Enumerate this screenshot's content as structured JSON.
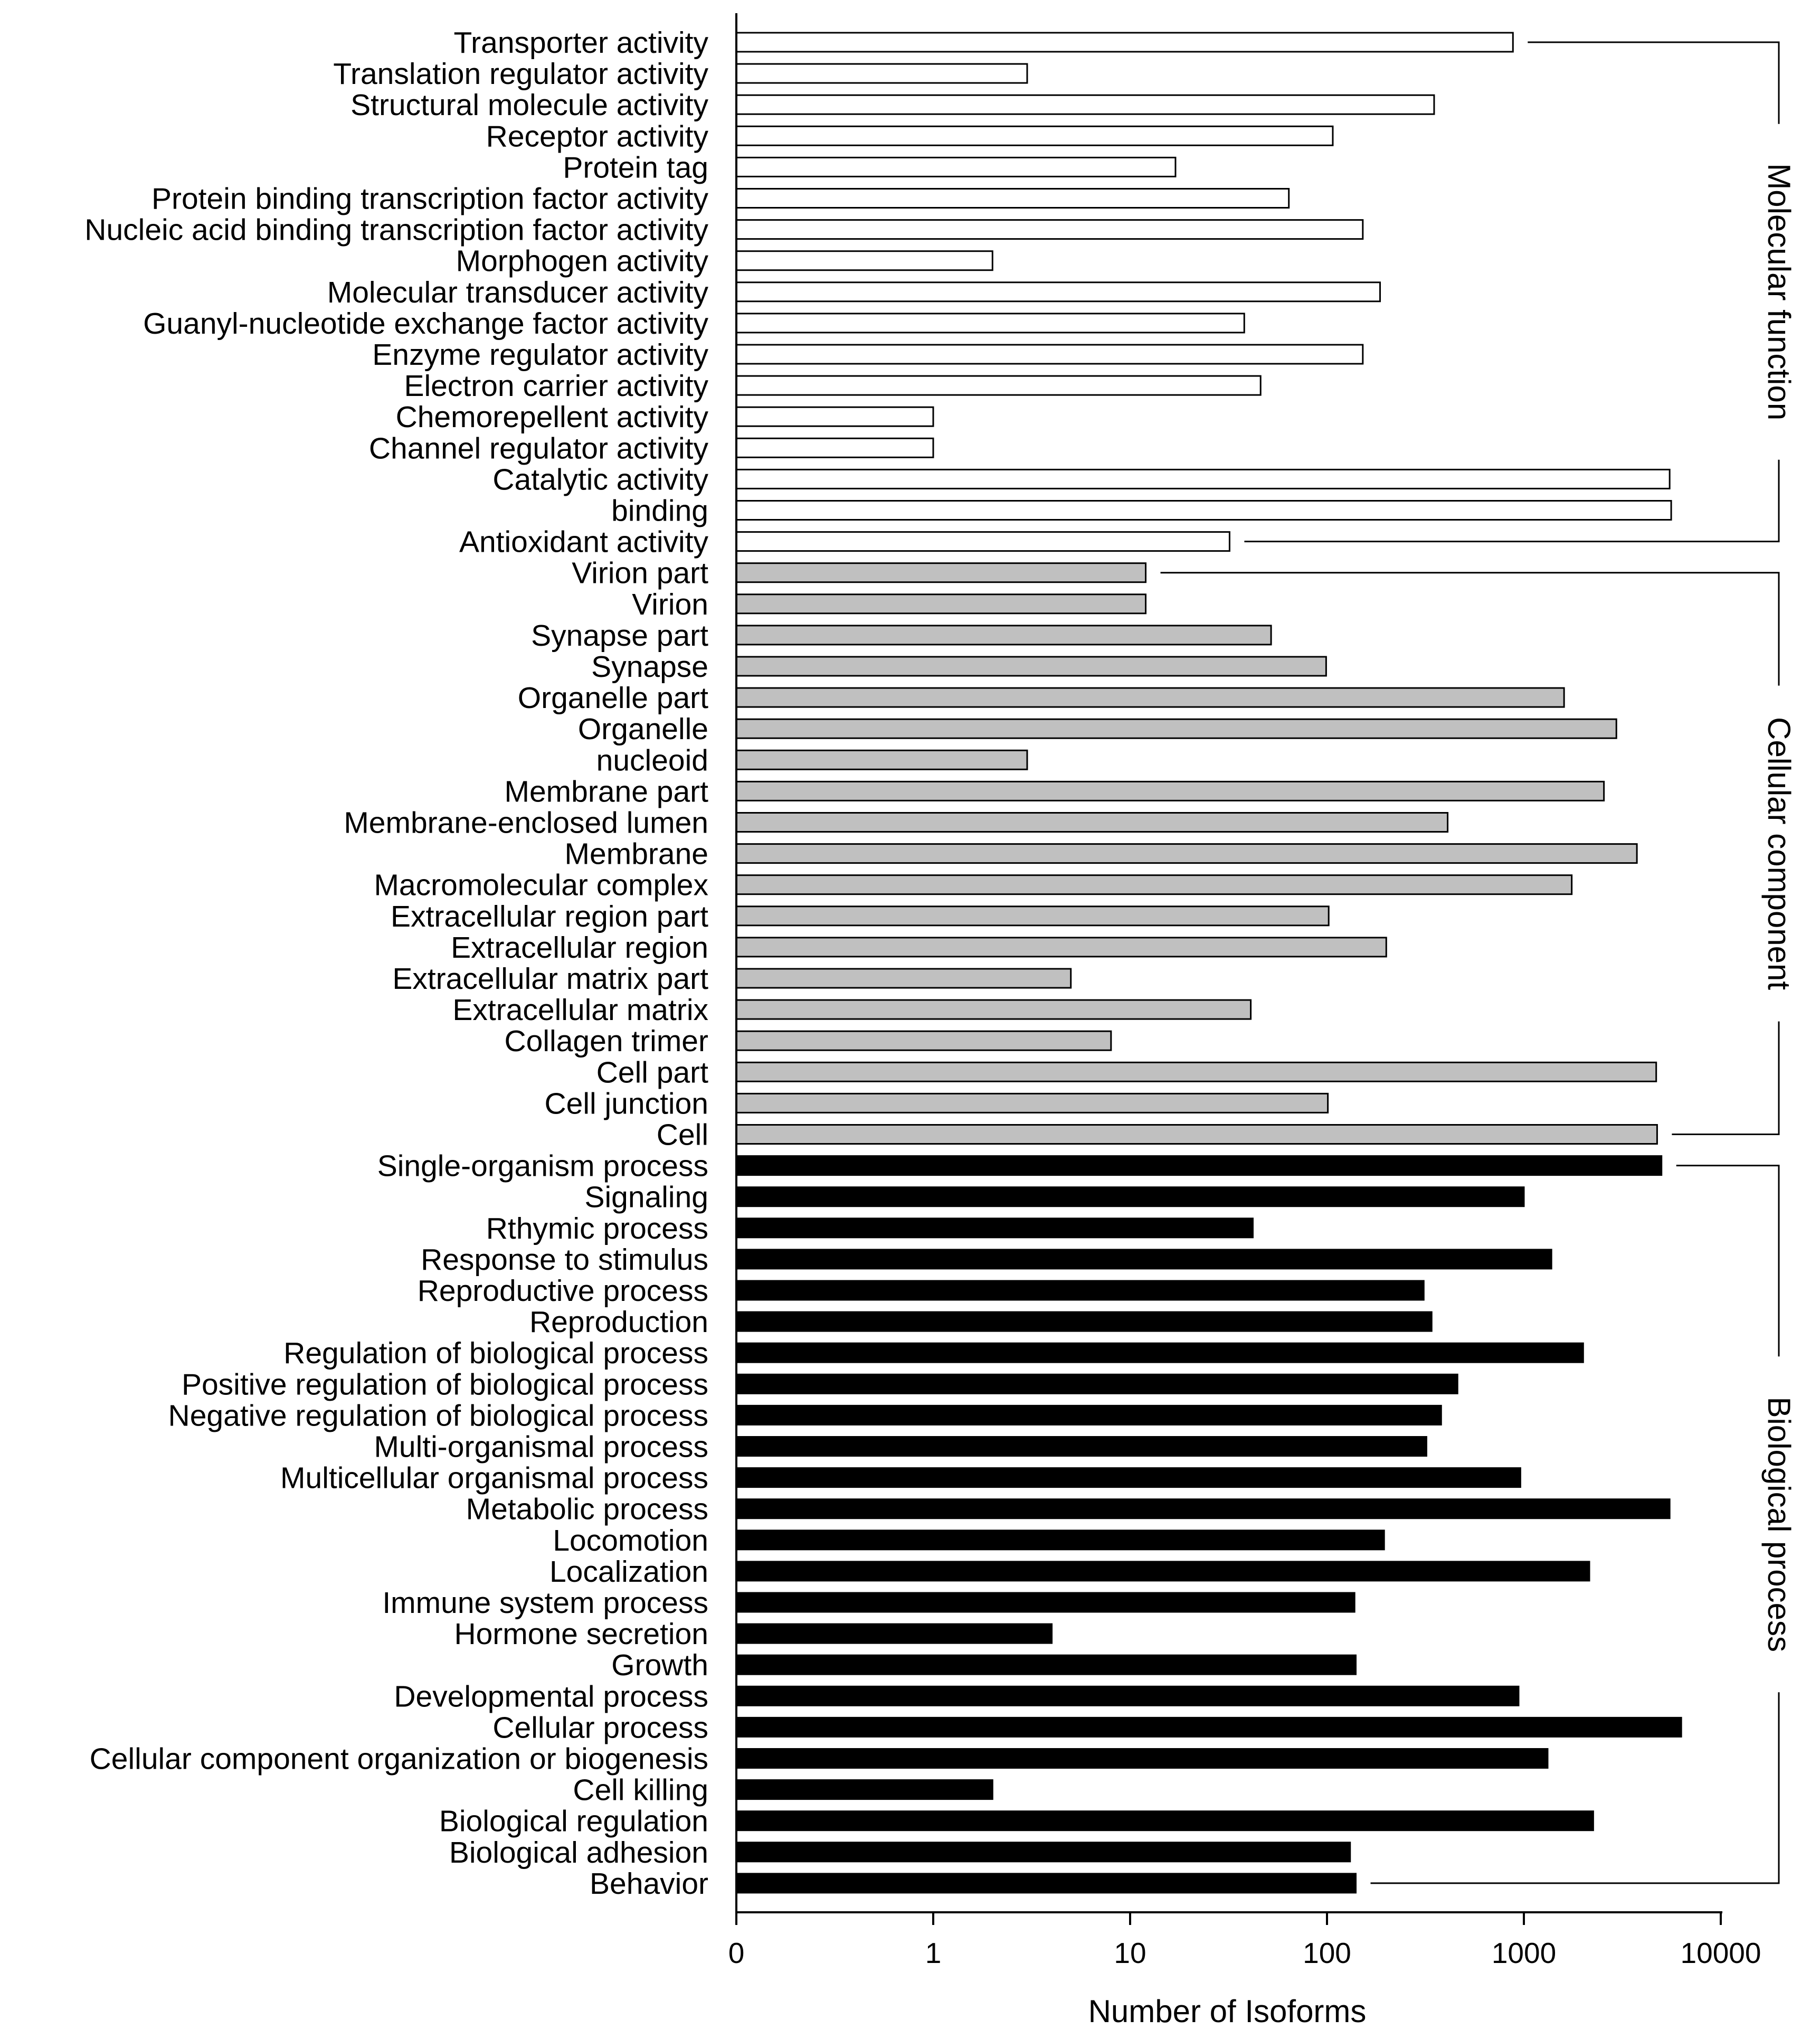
{
  "chart_data": {
    "type": "bar",
    "orientation": "horizontal",
    "xscale": "log (0 at origin)",
    "xlabel": "Number of Isoforms",
    "xticks": [
      "0",
      "1",
      "10",
      "100",
      "1000",
      "10000"
    ],
    "groups": [
      {
        "name": "Molecular function",
        "color": "#ffffff",
        "categories": [
          "Transporter activity",
          "Translation regulator activity",
          "Structural molecule activity",
          "Receptor activity",
          "Protein tag",
          "Protein binding transcription factor activity",
          "Nucleic acid binding transcription factor activity",
          "Morphogen activity",
          "Molecular transducer activity",
          "Guanyl-nucleotide exchange factor activity",
          "Enzyme regulator activity",
          "Electron carrier activity",
          "Chemorepellent activity",
          "Channel regulator activity",
          "Catalytic activity",
          "binding",
          "Antioxidant activity"
        ],
        "values": [
          880,
          3,
          350,
          107,
          17,
          64,
          152,
          2,
          186,
          38,
          152,
          46,
          1,
          1,
          5500,
          5600,
          32
        ]
      },
      {
        "name": "Cellular component",
        "color": "#c0c0c0",
        "categories": [
          "Virion part",
          "Virion",
          "Synapse part",
          "Synapse",
          "Organelle part",
          "Organelle",
          "nucleoid",
          "Membrane part",
          "Membrane-enclosed lumen",
          "Membrane",
          "Macromolecular complex",
          "Extracellular region part",
          "Extracellular region",
          "Extracellular matrix part",
          "Extracellular matrix",
          "Collagen trimer",
          "Cell part",
          "Cell junction",
          "Cell"
        ],
        "values": [
          12,
          12,
          52,
          99,
          1600,
          2950,
          3,
          2550,
          410,
          3750,
          1750,
          102,
          200,
          5,
          41,
          8,
          4700,
          101,
          4750
        ]
      },
      {
        "name": "Biological process",
        "color": "#000000",
        "categories": [
          "Single-organism process",
          "Signaling",
          "Rthymic process",
          "Response to stimulus",
          "Reproductive process",
          "Reproduction",
          "Regulation of biological process",
          "Positive regulation of biological process",
          "Negative regulation of biological process",
          "Multi-organismal process",
          "Multicellular organismal process",
          "Metabolic process",
          "Locomotion",
          "Localization",
          "Immune system process",
          "Hormone secretion",
          "Growth",
          "Developmental process",
          "Cellular process",
          "Cellular component organization or biogenesis",
          "Cell killing",
          "Biological regulation",
          "Biological adhesion",
          "Behavior"
        ],
        "values": [
          5000,
          1000,
          42,
          1380,
          310,
          340,
          2000,
          460,
          380,
          320,
          960,
          5500,
          195,
          2150,
          138,
          4,
          140,
          940,
          6300,
          1320,
          2,
          2250,
          131,
          140
        ]
      }
    ]
  }
}
